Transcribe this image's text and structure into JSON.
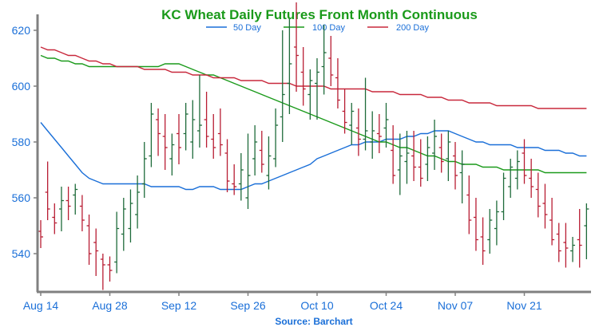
{
  "chart_data": {
    "type": "line",
    "title": "KC Wheat Daily Futures Front Month Continuous",
    "source": "Source: Barchart",
    "xlabel": "",
    "ylabel": "",
    "ylim": [
      527,
      632
    ],
    "yticks": [
      540,
      560,
      580,
      600,
      620
    ],
    "xticks": [
      {
        "label": "Aug 14",
        "index": 0
      },
      {
        "label": "Aug 28",
        "index": 10
      },
      {
        "label": "Sep 12",
        "index": 20
      },
      {
        "label": "Sep 26",
        "index": 30
      },
      {
        "label": "Oct 10",
        "index": 40
      },
      {
        "label": "Oct 24",
        "index": 50
      },
      {
        "label": "Nov 07",
        "index": 60
      },
      {
        "label": "Nov 21",
        "index": 70
      }
    ],
    "grid": false,
    "legend_position": "top-center",
    "colors": {
      "title": "#1a9a1a",
      "axis_text": "#1a6fd8",
      "up_bar": "#1e6b3a",
      "down_bar": "#b81d33",
      "ma50": "#1a6fd8",
      "ma100": "#1a9a1a",
      "ma200": "#c8283c",
      "axis": "#808080"
    },
    "ohlc": [
      [
        548,
        552,
        542,
        546
      ],
      [
        562,
        573,
        552,
        556
      ],
      [
        553,
        558,
        547,
        551
      ],
      [
        556,
        564,
        548,
        559
      ],
      [
        559,
        564,
        552,
        557
      ],
      [
        561,
        565,
        554,
        563
      ],
      [
        557,
        561,
        548,
        552
      ],
      [
        550,
        554,
        536,
        540
      ],
      [
        544,
        549,
        532,
        541
      ],
      [
        538,
        540,
        527,
        536
      ],
      [
        536,
        539,
        530,
        534
      ],
      [
        537,
        555,
        533,
        549
      ],
      [
        547,
        560,
        541,
        556
      ],
      [
        549,
        563,
        544,
        558
      ],
      [
        554,
        568,
        549,
        562
      ],
      [
        565,
        580,
        560,
        574
      ],
      [
        575,
        594,
        571,
        590
      ],
      [
        588,
        592,
        575,
        583
      ],
      [
        582,
        590,
        570,
        578
      ],
      [
        574,
        583,
        568,
        579
      ],
      [
        583,
        590,
        572,
        578
      ],
      [
        583,
        594,
        577,
        590
      ],
      [
        580,
        595,
        574,
        588
      ],
      [
        584,
        604,
        578,
        586
      ],
      [
        588,
        598,
        578,
        582
      ],
      [
        581,
        590,
        574,
        578
      ],
      [
        583,
        592,
        575,
        579
      ],
      [
        576,
        581,
        562,
        566
      ],
      [
        565,
        572,
        561,
        564
      ],
      [
        565,
        576,
        559,
        570
      ],
      [
        560,
        583,
        556,
        568
      ],
      [
        574,
        586,
        568,
        580
      ],
      [
        577,
        584,
        569,
        572
      ],
      [
        568,
        582,
        563,
        575
      ],
      [
        574,
        592,
        571,
        586
      ],
      [
        589,
        620,
        580,
        597
      ],
      [
        601,
        624,
        590,
        608
      ],
      [
        614,
        630,
        598,
        611
      ],
      [
        605,
        614,
        593,
        599
      ],
      [
        597,
        606,
        588,
        602
      ],
      [
        601,
        610,
        588,
        605
      ],
      [
        607,
        622,
        597,
        612
      ],
      [
        610,
        618,
        600,
        604
      ],
      [
        603,
        610,
        592,
        595
      ],
      [
        591,
        599,
        583,
        587
      ],
      [
        586,
        594,
        579,
        591
      ],
      [
        585,
        592,
        575,
        581
      ],
      [
        581,
        603,
        577,
        584
      ],
      [
        580,
        591,
        574,
        584
      ],
      [
        583,
        590,
        576,
        582
      ],
      [
        585,
        594,
        578,
        588
      ],
      [
        577,
        586,
        565,
        568
      ],
      [
        570,
        583,
        561,
        575
      ],
      [
        573,
        584,
        565,
        576
      ],
      [
        575,
        584,
        566,
        571
      ],
      [
        571,
        581,
        564,
        567
      ],
      [
        572,
        582,
        566,
        578
      ],
      [
        576,
        588,
        570,
        582
      ],
      [
        578,
        583,
        569,
        573
      ],
      [
        574,
        584,
        566,
        580
      ],
      [
        575,
        580,
        563,
        568
      ],
      [
        569,
        577,
        558,
        572
      ],
      [
        561,
        568,
        547,
        552
      ],
      [
        553,
        560,
        541,
        545
      ],
      [
        546,
        553,
        536,
        541
      ],
      [
        545,
        556,
        540,
        552
      ],
      [
        549,
        559,
        543,
        555
      ],
      [
        555,
        569,
        552,
        567
      ],
      [
        564,
        574,
        560,
        571
      ],
      [
        567,
        577,
        563,
        573
      ],
      [
        576,
        581,
        565,
        568
      ],
      [
        567,
        574,
        560,
        564
      ],
      [
        563,
        569,
        553,
        557
      ],
      [
        558,
        565,
        549,
        554
      ],
      [
        552,
        560,
        543,
        545
      ],
      [
        547,
        551,
        537,
        541
      ],
      [
        544,
        551,
        535,
        542
      ],
      [
        541,
        546,
        537,
        543
      ],
      [
        545,
        556,
        535,
        543
      ],
      [
        550,
        558,
        538,
        556
      ]
    ],
    "series": [
      {
        "name": "50 Day",
        "color": "#1a6fd8",
        "values": [
          587,
          584,
          581,
          578,
          575,
          572,
          569,
          567,
          566,
          565,
          565,
          565,
          565,
          565,
          565,
          565,
          564,
          564,
          564,
          564,
          564,
          563,
          563,
          564,
          564,
          564,
          563,
          563,
          563,
          563,
          564,
          565,
          565,
          566,
          567,
          568,
          569,
          570,
          571,
          572,
          574,
          575,
          576,
          577,
          578,
          579,
          579,
          580,
          580,
          580,
          581,
          581,
          581,
          582,
          582,
          583,
          583,
          584,
          584,
          584,
          583,
          582,
          581,
          580,
          580,
          579,
          579,
          579,
          579,
          578,
          578,
          578,
          578,
          577,
          577,
          577,
          576,
          576,
          575,
          575
        ]
      },
      {
        "name": "100 Day",
        "color": "#1a9a1a",
        "values": [
          611,
          610,
          610,
          609,
          609,
          608,
          608,
          607,
          607,
          607,
          607,
          607,
          607,
          607,
          607,
          607,
          607,
          607,
          608,
          608,
          608,
          607,
          606,
          605,
          604,
          604,
          603,
          602,
          601,
          600,
          599,
          598,
          597,
          596,
          595,
          594,
          593,
          592,
          591,
          590,
          589,
          588,
          587,
          586,
          585,
          584,
          583,
          582,
          581,
          580,
          580,
          579,
          578,
          578,
          577,
          576,
          575,
          575,
          574,
          573,
          573,
          572,
          572,
          572,
          571,
          571,
          571,
          570,
          570,
          570,
          570,
          570,
          570,
          569,
          569,
          569,
          569,
          569,
          569,
          569
        ]
      },
      {
        "name": "200 Day",
        "color": "#c8283c",
        "values": [
          614,
          613,
          613,
          612,
          611,
          611,
          610,
          609,
          609,
          608,
          608,
          607,
          607,
          607,
          607,
          606,
          606,
          606,
          606,
          605,
          605,
          605,
          604,
          604,
          604,
          603,
          603,
          603,
          603,
          602,
          602,
          602,
          602,
          601,
          601,
          601,
          601,
          600,
          600,
          600,
          600,
          600,
          599,
          599,
          599,
          599,
          599,
          599,
          598,
          598,
          598,
          598,
          597,
          597,
          597,
          597,
          596,
          596,
          596,
          595,
          595,
          595,
          594,
          594,
          594,
          594,
          593,
          593,
          593,
          593,
          593,
          593,
          592,
          592,
          592,
          592,
          592,
          592,
          592,
          592
        ]
      }
    ]
  }
}
